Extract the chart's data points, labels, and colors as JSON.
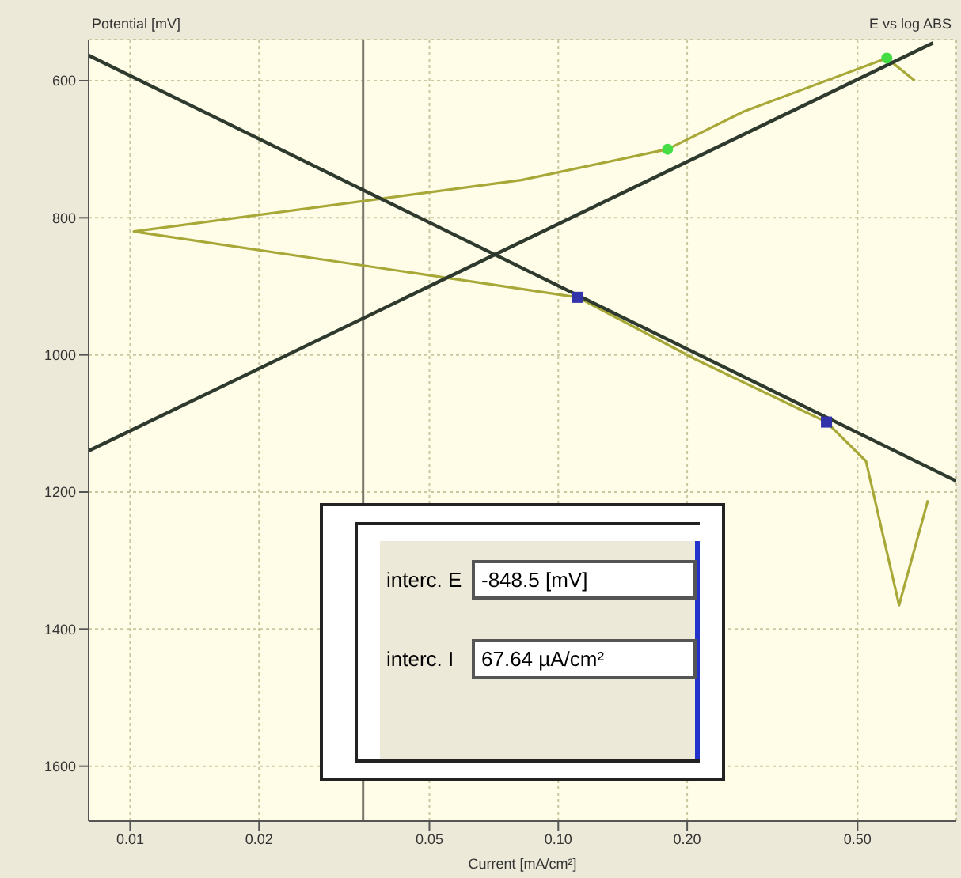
{
  "chart_data": {
    "type": "line",
    "title": "E vs log ABS",
    "ylabel": "Potential [mV]",
    "xlabel": "Current [mA/cm²]",
    "log": "x",
    "xlim": [
      0.008,
      0.85
    ],
    "xticks": [
      {
        "value": 0.01,
        "label": "0.01"
      },
      {
        "value": 0.02,
        "label": "0.02"
      },
      {
        "value": 0.05,
        "label": "0.05"
      },
      {
        "value": 0.1,
        "label": "0.10"
      },
      {
        "value": 0.2,
        "label": "0.20"
      },
      {
        "value": 0.5,
        "label": "0.50"
      }
    ],
    "ylim": [
      1680,
      540
    ],
    "yticks": [
      600,
      800,
      1000,
      1200,
      1400,
      1600
    ],
    "grid": true,
    "ref_lines": [
      {
        "axis": "x",
        "value": 0.035,
        "color": "#77776a"
      }
    ],
    "series": [
      {
        "color": "#a8a838",
        "marker": "none",
        "x": [
          0.73,
          0.625,
          0.523,
          0.423,
          0.21,
          0.111,
          0.0102,
          0.082,
          0.18,
          0.271,
          0.585,
          0.68
        ],
        "values": [
          1212,
          1365,
          1155,
          1098,
          1007,
          916,
          820,
          745,
          700,
          645,
          567,
          600
        ]
      },
      {
        "color": "#2f3a2f",
        "marker": "none",
        "x": [
          0.008,
          0.75
        ],
        "values": [
          1140,
          545
        ]
      },
      {
        "color": "#2f3a2f",
        "marker": "none",
        "x": [
          0.008,
          0.85
        ],
        "values": [
          563,
          1184
        ]
      },
      {
        "type": "scatter",
        "color": "#44dd44",
        "marker": "circle",
        "x": [
          0.18,
          0.585
        ],
        "values": [
          700,
          567
        ]
      },
      {
        "type": "scatter",
        "color": "#3333aa",
        "marker": "square",
        "x": [
          0.111,
          0.423
        ],
        "values": [
          916,
          1098
        ]
      }
    ],
    "annotations": [
      "interc. E",
      "-848.5 [mV]",
      "interc. I",
      "67.64 µA/cm²"
    ]
  }
}
